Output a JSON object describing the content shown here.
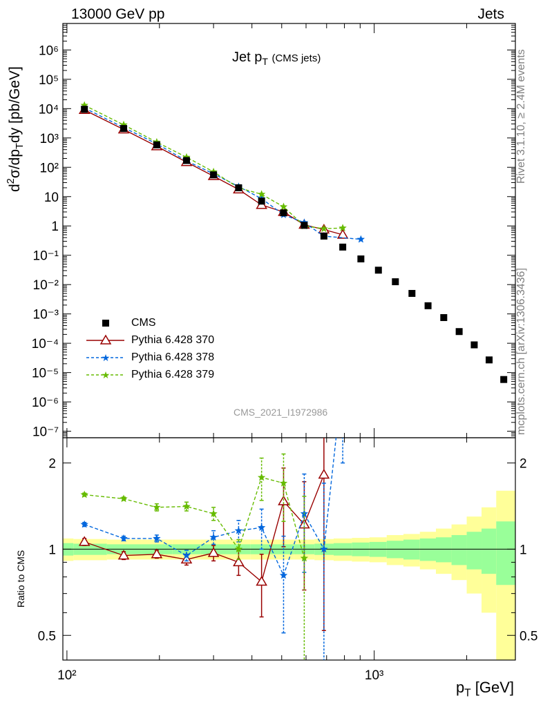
{
  "header": {
    "left": "13000 GeV pp",
    "right": "Jets"
  },
  "side": {
    "rivet": "Rivet 3.1.10, ≥ 2.4M events",
    "mcplots": "mcplots.cern.ch [arXiv:1306.3436]"
  },
  "analysis_id": "CMS_2021_I1972986",
  "chart_data": [
    {
      "type": "line",
      "title_main": "Jet p",
      "title_sub": "T",
      "title_suffix": "(CMS jets)",
      "ylabel": "d²σ/dp_T dy [pb/GeV]",
      "xlabel": "p_T [GeV]",
      "xscale": "log",
      "yscale": "log",
      "xlim": [
        97,
        2880
      ],
      "ylim": [
        6e-08,
        8000000.0
      ],
      "y_ticks": [
        "10⁻⁷",
        "10⁻⁶",
        "10⁻⁵",
        "10⁻⁴",
        "10⁻³",
        "10⁻²",
        "10⁻¹",
        "1",
        "10",
        "10²",
        "10³",
        "10⁴",
        "10⁵",
        "10⁶"
      ],
      "legend_position": "lower-left",
      "series": [
        {
          "name": "CMS",
          "color": "#000000",
          "marker": "square",
          "x": [
            114,
            153,
            196,
            245,
            300,
            362,
            430,
            507,
            592,
            686,
            790,
            905,
            1032,
            1172,
            1327,
            1497,
            1684,
            1890,
            2116,
            2366,
            2640
          ],
          "y": [
            9500,
            2100,
            580,
            170,
            55,
            20,
            7,
            2.8,
            1.05,
            0.45,
            0.19,
            0.075,
            0.031,
            0.0125,
            0.005,
            0.0019,
            0.00075,
            0.00025,
            8.8e-05,
            2.7e-05,
            5.8e-06
          ]
        },
        {
          "name": "Pythia 6.428 370",
          "color": "#990000",
          "marker": "triangle",
          "dash": "solid",
          "x": [
            114,
            153,
            196,
            245,
            300,
            362,
            430,
            507,
            592,
            686,
            790
          ],
          "y": [
            9000,
            1950,
            520,
            150,
            50,
            17.5,
            5.2,
            3.0,
            1.1,
            0.75,
            0.5
          ]
        },
        {
          "name": "Pythia 6.428 378",
          "color": "#0066dd",
          "marker": "star",
          "dash": "dashed",
          "x": [
            114,
            153,
            196,
            245,
            300,
            362,
            430,
            507,
            592,
            686,
            905
          ],
          "y": [
            10500,
            2250,
            630,
            165,
            60,
            22,
            8.5,
            2.4,
            1.3,
            0.45,
            0.35
          ]
        },
        {
          "name": "Pythia 6.428 379",
          "color": "#66bb00",
          "marker": "star",
          "dash": "dashed",
          "x": [
            114,
            153,
            196,
            245,
            300,
            362,
            430,
            507,
            592,
            686,
            790
          ],
          "y": [
            13000,
            2800,
            720,
            220,
            70,
            20,
            12,
            4.5,
            1.0,
            0.8,
            0.85
          ]
        }
      ]
    },
    {
      "type": "line",
      "ylabel": "Ratio to CMS",
      "xscale": "log",
      "yscale": "log",
      "ylim": [
        0.41,
        2.45
      ],
      "y_ticks": [
        "0.5",
        "1",
        "2"
      ],
      "x_ticks": [
        "10²",
        "10³"
      ],
      "band_inner_color": "#99ff99",
      "band_outer_color": "#ffff99",
      "band_x_edges": [
        97,
        105,
        135,
        175,
        220,
        272,
        330,
        395,
        468,
        549,
        639,
        738,
        846,
        965,
        1098,
        1245,
        1408,
        1588,
        1785,
        2000,
        2235,
        2495,
        2880
      ],
      "band_inner": [
        0.05,
        0.045,
        0.04,
        0.04,
        0.04,
        0.04,
        0.04,
        0.04,
        0.04,
        0.04,
        0.045,
        0.05,
        0.055,
        0.06,
        0.07,
        0.08,
        0.09,
        0.1,
        0.12,
        0.15,
        0.18,
        0.25
      ],
      "band_outer": [
        0.09,
        0.085,
        0.08,
        0.08,
        0.08,
        0.08,
        0.08,
        0.08,
        0.08,
        0.08,
        0.085,
        0.09,
        0.095,
        0.1,
        0.12,
        0.13,
        0.15,
        0.18,
        0.22,
        0.3,
        0.4,
        0.6
      ],
      "series": [
        {
          "name": "Pythia 6.428 370",
          "x": [
            114,
            153,
            196,
            245,
            300,
            362,
            430,
            507,
            592,
            686
          ],
          "y": [
            1.06,
            0.95,
            0.96,
            0.92,
            0.97,
            0.9,
            0.77,
            1.47,
            1.22,
            1.82
          ],
          "err": [
            0.03,
            0.03,
            0.03,
            0.04,
            0.06,
            0.09,
            0.19,
            0.45,
            0.5,
            1.3
          ]
        },
        {
          "name": "Pythia 6.428 378",
          "x": [
            114,
            153,
            196,
            245,
            300,
            362,
            430,
            507,
            592,
            686,
            790
          ],
          "y": [
            1.22,
            1.09,
            1.09,
            0.95,
            1.1,
            1.16,
            1.19,
            0.81,
            1.33,
            1.0,
            4.0
          ],
          "err": [
            0.02,
            0.02,
            0.03,
            0.04,
            0.06,
            0.1,
            0.19,
            0.3,
            0.5,
            0.7,
            2.0
          ]
        },
        {
          "name": "Pythia 6.428 379",
          "x": [
            114,
            153,
            196,
            245,
            300,
            362,
            430,
            507,
            592
          ],
          "y": [
            1.55,
            1.5,
            1.4,
            1.41,
            1.33,
            1.0,
            1.78,
            1.7,
            0.93
          ],
          "err": [
            0.02,
            0.02,
            0.04,
            0.05,
            0.07,
            0.08,
            0.3,
            0.45,
            0.6
          ]
        }
      ]
    }
  ]
}
